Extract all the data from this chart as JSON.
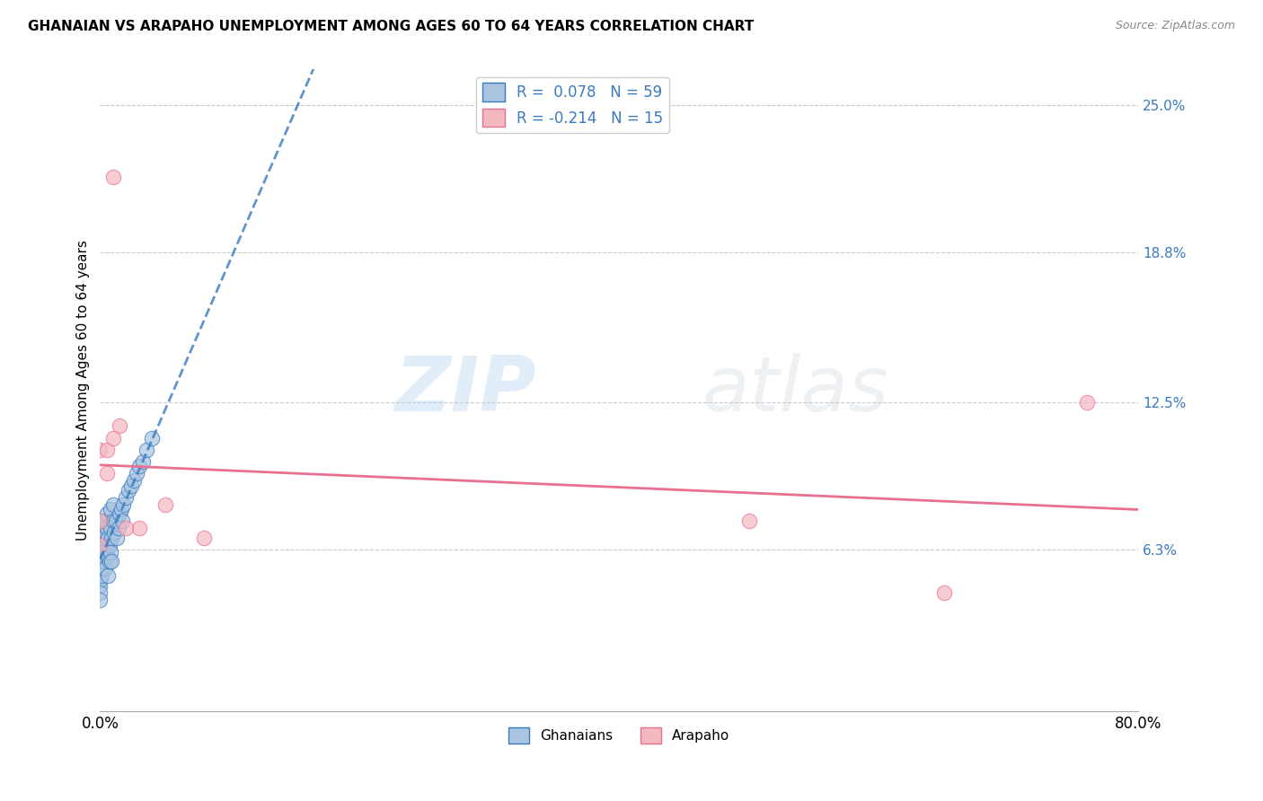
{
  "title": "GHANAIAN VS ARAPAHO UNEMPLOYMENT AMONG AGES 60 TO 64 YEARS CORRELATION CHART",
  "source": "Source: ZipAtlas.com",
  "ylabel": "Unemployment Among Ages 60 to 64 years",
  "xlim": [
    0,
    0.8
  ],
  "ylim": [
    -0.005,
    0.265
  ],
  "xticks": [
    0.0,
    0.1,
    0.2,
    0.3,
    0.4,
    0.5,
    0.6,
    0.7,
    0.8
  ],
  "ytick_positions": [
    0.0,
    0.063,
    0.125,
    0.188,
    0.25
  ],
  "yticklabels_right": [
    "",
    "6.3%",
    "12.5%",
    "18.8%",
    "25.0%"
  ],
  "ghanaian_color": "#a8c4e0",
  "arapaho_color": "#f4b8c1",
  "ghanaian_line_color": "#3a7abf",
  "arapaho_line_color": "#e87090",
  "ghanaian_R": 0.078,
  "ghanaian_N": 59,
  "arapaho_R": -0.214,
  "arapaho_N": 15,
  "ghanaian_x": [
    0.0,
    0.0,
    0.0,
    0.0,
    0.0,
    0.0,
    0.0,
    0.0,
    0.0,
    0.0,
    0.0,
    0.0,
    0.001,
    0.001,
    0.001,
    0.001,
    0.002,
    0.002,
    0.002,
    0.002,
    0.003,
    0.003,
    0.003,
    0.004,
    0.004,
    0.004,
    0.004,
    0.005,
    0.005,
    0.005,
    0.006,
    0.006,
    0.006,
    0.007,
    0.007,
    0.008,
    0.008,
    0.008,
    0.009,
    0.009,
    0.01,
    0.01,
    0.011,
    0.012,
    0.013,
    0.014,
    0.015,
    0.016,
    0.017,
    0.018,
    0.02,
    0.022,
    0.024,
    0.026,
    0.028,
    0.03,
    0.033,
    0.036,
    0.04
  ],
  "ghanaian_y": [
    0.06,
    0.055,
    0.058,
    0.062,
    0.065,
    0.07,
    0.072,
    0.075,
    0.048,
    0.05,
    0.045,
    0.042,
    0.068,
    0.062,
    0.058,
    0.052,
    0.07,
    0.065,
    0.06,
    0.055,
    0.072,
    0.068,
    0.058,
    0.075,
    0.07,
    0.062,
    0.055,
    0.078,
    0.072,
    0.065,
    0.068,
    0.06,
    0.052,
    0.065,
    0.058,
    0.08,
    0.072,
    0.062,
    0.068,
    0.058,
    0.082,
    0.075,
    0.07,
    0.075,
    0.068,
    0.072,
    0.078,
    0.08,
    0.075,
    0.082,
    0.085,
    0.088,
    0.09,
    0.092,
    0.095,
    0.098,
    0.1,
    0.105,
    0.11
  ],
  "arapaho_x": [
    0.01,
    0.0,
    0.005,
    0.015,
    0.005,
    0.01,
    0.05,
    0.03,
    0.5,
    0.65,
    0.76,
    0.0,
    0.02,
    0.0,
    0.08
  ],
  "arapaho_y": [
    0.22,
    0.105,
    0.105,
    0.115,
    0.095,
    0.11,
    0.082,
    0.072,
    0.075,
    0.045,
    0.125,
    0.075,
    0.072,
    0.065,
    0.068
  ],
  "watermark_zip": "ZIP",
  "watermark_atlas": "atlas",
  "background_color": "#ffffff",
  "grid_color": "#cccccc"
}
